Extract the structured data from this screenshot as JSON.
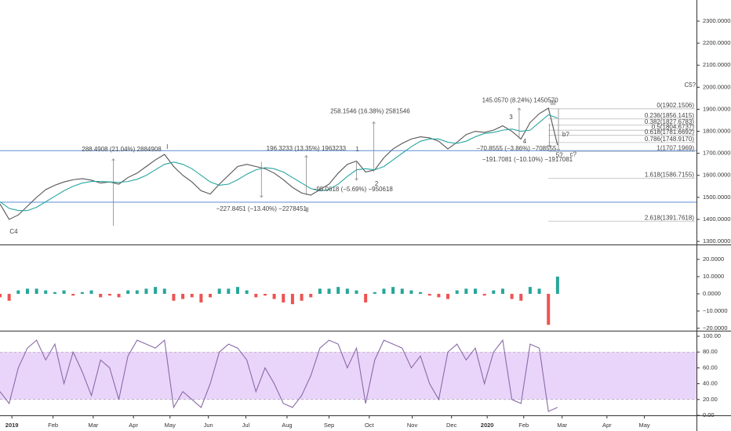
{
  "chart_data": [
    {
      "type": "line",
      "xlim": [
        0,
        76.2
      ],
      "ylim": [
        1286,
        2396
      ],
      "yticks": [
        {
          "value": 1300,
          "label": "1300.0000"
        },
        {
          "value": 1400,
          "label": "1400.0000"
        },
        {
          "value": 1500,
          "label": "1500.0000"
        },
        {
          "value": 1600,
          "label": "1600.0000"
        },
        {
          "value": 1700,
          "label": "1700.0000"
        },
        {
          "value": 1800,
          "label": "1800.0000"
        },
        {
          "value": 1900,
          "label": "1900.0000"
        },
        {
          "value": 2000,
          "label": "2000.0000"
        },
        {
          "value": 2100,
          "label": "2100.0000"
        },
        {
          "value": 2200,
          "label": "2200.0000"
        },
        {
          "value": 2300,
          "label": "2300.0000"
        }
      ],
      "series": [
        {
          "color": "#555555",
          "values": [
            1470,
            1400,
            1420,
            1460,
            1500,
            1535,
            1555,
            1570,
            1580,
            1585,
            1578,
            1565,
            1570,
            1560,
            1590,
            1610,
            1640,
            1670,
            1695,
            1640,
            1600,
            1570,
            1530,
            1515,
            1560,
            1600,
            1640,
            1650,
            1640,
            1630,
            1610,
            1580,
            1545,
            1520,
            1510,
            1535,
            1560,
            1610,
            1650,
            1665,
            1615,
            1625,
            1680,
            1720,
            1745,
            1765,
            1775,
            1770,
            1755,
            1720,
            1750,
            1785,
            1800,
            1795,
            1805,
            1825,
            1800,
            1765,
            1840,
            1880,
            1905,
            1737
          ]
        },
        {
          "color": "#26a6a0",
          "values": [
            1480,
            1450,
            1440,
            1440,
            1455,
            1480,
            1505,
            1530,
            1550,
            1565,
            1572,
            1572,
            1570,
            1568,
            1572,
            1582,
            1600,
            1625,
            1650,
            1660,
            1650,
            1630,
            1600,
            1570,
            1555,
            1560,
            1580,
            1605,
            1625,
            1635,
            1630,
            1615,
            1590,
            1565,
            1540,
            1530,
            1535,
            1560,
            1595,
            1625,
            1630,
            1625,
            1640,
            1670,
            1700,
            1730,
            1755,
            1765,
            1765,
            1750,
            1745,
            1755,
            1775,
            1790,
            1795,
            1805,
            1810,
            1800,
            1805,
            1840,
            1875,
            1860
          ]
        }
      ],
      "hlines": [
        {
          "value": 1712,
          "color": "#5b8fd6"
        },
        {
          "value": 1478,
          "color": "#5b8fd6"
        }
      ],
      "fib_start": 60,
      "fib_levels": [
        {
          "value": 1902.1506,
          "label": "0(1902.1506)"
        },
        {
          "value": 1856.1415,
          "label": "0.236(1856.1415)"
        },
        {
          "value": 1827.6783,
          "label": "0.382(1827.6783)"
        },
        {
          "value": 1804.6737,
          "label": "0.5(1804.6737)"
        },
        {
          "value": 1781.6692,
          "label": "0.618(1781.6692)"
        },
        {
          "value": 1748.917,
          "label": "0.786(1748.9170)"
        },
        {
          "value": 1707.1969,
          "label": "1(1707.1969)"
        },
        {
          "value": 1586.7155,
          "label": "1.618(1586.7155)"
        },
        {
          "value": 1391.7618,
          "label": "2.618(1391.7618)"
        }
      ],
      "measures": [
        {
          "x": 12.4,
          "from": 1371,
          "to": 1675,
          "label": "288.4908 (21.04%) 2884908",
          "label_x": 13.3,
          "label_y": 1716,
          "color": "#3fae5a"
        },
        {
          "x": 28.6,
          "from": 1662,
          "to": 1500,
          "label": "−227.8451 (−13.40%) −2278451",
          "label_x": 28.6,
          "label_y": 1446,
          "color": "#d63b3b"
        },
        {
          "x": 33.5,
          "from": 1510,
          "to": 1690,
          "label": "196.3233 (13.35%) 1963233",
          "label_x": 33.5,
          "label_y": 1720,
          "color": "#3fae5a"
        },
        {
          "x": 39,
          "from": 1665,
          "to": 1578,
          "label": "−95.0618 (−5.69%) −950618",
          "label_x": 38.6,
          "label_y": 1535,
          "color": "#d63b3b"
        },
        {
          "x": 40.9,
          "from": 1615,
          "to": 1843,
          "label": "258.1546 (16.38%) 2581546",
          "label_x": 40.5,
          "label_y": 1890,
          "color": "#3fae5a"
        },
        {
          "x": 56.8,
          "from": 1765,
          "to": 1905,
          "label": "145.0570 (8.24%) 1450570",
          "label_x": 56.9,
          "label_y": 1940,
          "color": "#3fae5a"
        },
        {
          "x": 60.1,
          "from": 1835,
          "to": 1730,
          "label": "−70.8555 (−3.86%) −708555",
          "label_x": 56.5,
          "label_y": 1720,
          "color": "#d63b3b"
        },
        {
          "x": 61.1,
          "from": 1902,
          "to": 1712,
          "label": "−191.7081 (−10.10%) −1917081",
          "label_x": 57.7,
          "label_y": 1670,
          "color": "#d63b3b"
        }
      ],
      "waves": [
        {
          "label": "C4",
          "x": 1.5,
          "y": 1343,
          "color": "#3a6fb0"
        },
        {
          "label": "I",
          "x": 18.3,
          "y": 1727,
          "color": "#3a6fb0"
        },
        {
          "label": "II",
          "x": 33.6,
          "y": 1442,
          "color": "#3a6fb0"
        },
        {
          "label": "III",
          "x": 60.5,
          "y": 1926,
          "color": "#3a6fb0"
        },
        {
          "label": "C5?",
          "x": 75.5,
          "y": 2008,
          "color": "#3a6fb0"
        },
        {
          "label": "1",
          "x": 39.1,
          "y": 1716,
          "color": "#222222"
        },
        {
          "label": "2",
          "x": 41.2,
          "y": 1560,
          "color": "#222222"
        },
        {
          "label": "3",
          "x": 55.9,
          "y": 1862,
          "color": "#222222"
        },
        {
          "label": "4",
          "x": 57.4,
          "y": 1752,
          "color": "#222222"
        },
        {
          "label": "5?",
          "x": 61.2,
          "y": 1691,
          "color": "#222222"
        },
        {
          "label": "b?",
          "x": 61.9,
          "y": 1784,
          "color": "#222222"
        },
        {
          "label": "c?",
          "x": 62.7,
          "y": 1693,
          "color": "#222222"
        }
      ]
    },
    {
      "type": "bar",
      "ylim": [
        -21.4,
        28.2
      ],
      "yticks": [
        {
          "value": 20,
          "label": "20.0000"
        },
        {
          "value": 10,
          "label": "10.0000"
        },
        {
          "value": 0,
          "label": "0.0000"
        },
        {
          "value": -10,
          "label": "−10.0000"
        },
        {
          "value": -20,
          "label": "−20.0000"
        }
      ],
      "up_color": "#26a69a",
      "down_color": "#ef5350",
      "values": [
        -2,
        -4,
        2,
        3,
        3,
        2,
        1,
        2,
        -1,
        1,
        2,
        -2,
        -1,
        -2,
        2,
        2,
        3,
        4,
        3,
        -4,
        -3,
        -2,
        -5,
        -2,
        3,
        3,
        4,
        2,
        -2,
        -1,
        -3,
        -5,
        -6,
        -4,
        -2,
        3,
        3,
        4,
        3,
        2,
        -5,
        1,
        3,
        4,
        3,
        2,
        1,
        -1,
        -2,
        -3,
        2,
        3,
        3,
        -1,
        2,
        3,
        -3,
        -4,
        4,
        3,
        -18,
        10
      ]
    },
    {
      "type": "line",
      "ylim": [
        0,
        106
      ],
      "yticks": [
        {
          "value": 100,
          "label": "100.00"
        },
        {
          "value": 80,
          "label": "80.00"
        },
        {
          "value": 60,
          "label": "60.00"
        },
        {
          "value": 40,
          "label": "40.00"
        },
        {
          "value": 20,
          "label": "20.00"
        },
        {
          "value": 0,
          "label": "0.00"
        }
      ],
      "band": [
        20,
        80
      ],
      "band_color": "#d9b3f5",
      "series": [
        {
          "color": "#8a6aa8",
          "values": [
            30,
            15,
            60,
            85,
            95,
            70,
            90,
            40,
            80,
            55,
            25,
            70,
            60,
            20,
            75,
            95,
            90,
            85,
            95,
            10,
            30,
            20,
            10,
            40,
            80,
            90,
            85,
            70,
            30,
            60,
            40,
            15,
            10,
            25,
            50,
            85,
            95,
            90,
            60,
            85,
            15,
            70,
            95,
            90,
            85,
            60,
            75,
            40,
            20,
            80,
            90,
            70,
            85,
            40,
            80,
            95,
            20,
            15,
            90,
            85,
            5,
            10
          ]
        }
      ],
      "xticks": [
        {
          "value": 1.3,
          "label": "2019",
          "bold": true
        },
        {
          "value": 5.8,
          "label": "Feb"
        },
        {
          "value": 10.2,
          "label": "Mar"
        },
        {
          "value": 14.6,
          "label": "Apr"
        },
        {
          "value": 18.6,
          "label": "May"
        },
        {
          "value": 22.8,
          "label": "Jun"
        },
        {
          "value": 26.9,
          "label": "Jul"
        },
        {
          "value": 31.4,
          "label": "Aug"
        },
        {
          "value": 36,
          "label": "Sep"
        },
        {
          "value": 40.4,
          "label": "Oct"
        },
        {
          "value": 45.1,
          "label": "Nov"
        },
        {
          "value": 49.4,
          "label": "Dec"
        },
        {
          "value": 53.3,
          "label": "2020",
          "bold": true
        },
        {
          "value": 57.3,
          "label": "Feb"
        },
        {
          "value": 61.5,
          "label": "Mar"
        },
        {
          "value": 66.4,
          "label": "Apr"
        },
        {
          "value": 70.5,
          "label": "May"
        }
      ]
    }
  ]
}
